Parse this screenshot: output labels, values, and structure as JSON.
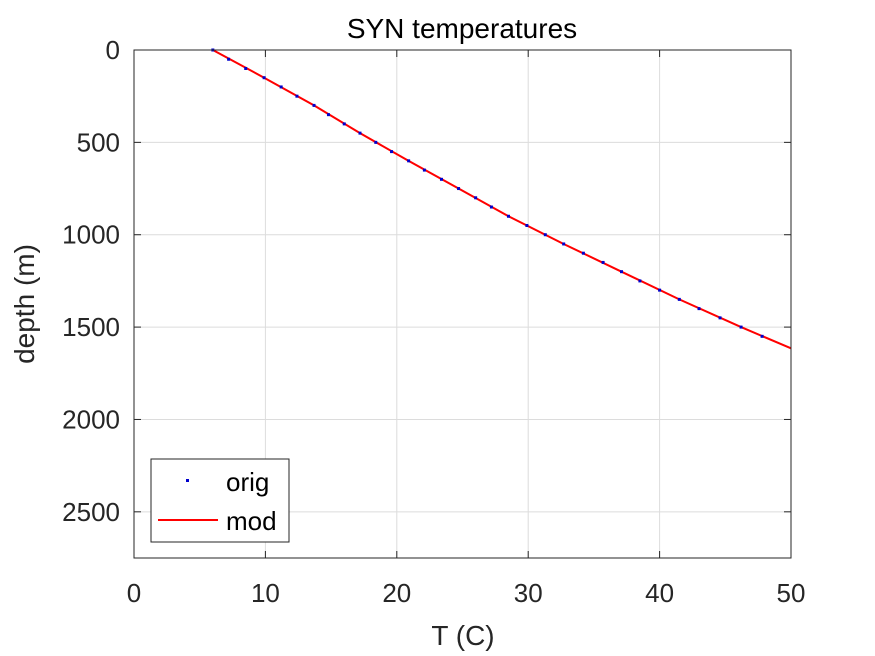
{
  "chart_data": {
    "type": "line",
    "title": "SYN temperatures",
    "xlabel": "T (C)",
    "ylabel": "depth (m)",
    "xlim": [
      0,
      50
    ],
    "ylim": [
      0,
      2750
    ],
    "y_reversed": true,
    "grid": true,
    "x_ticks": [
      0,
      10,
      20,
      30,
      40,
      50
    ],
    "y_ticks": [
      0,
      500,
      1000,
      1500,
      2000,
      2500
    ],
    "legend": {
      "placement": "bottom-left",
      "entries": [
        "orig",
        "mod"
      ]
    },
    "colors": {
      "orig": "#0000cc",
      "mod": "#ff0000"
    },
    "series": [
      {
        "name": "orig",
        "style": "points",
        "x": [
          6.0,
          7.2,
          8.5,
          9.9,
          11.2,
          12.4,
          13.7,
          14.8,
          16.0,
          17.2,
          18.4,
          19.6,
          20.9,
          22.1,
          23.4,
          24.7,
          26.0,
          27.2,
          28.5,
          29.9,
          31.3,
          32.7,
          34.2,
          35.7,
          37.1,
          38.5,
          40.0,
          41.5,
          43.0,
          44.6,
          46.2,
          47.8
        ],
        "y": [
          0,
          50,
          100,
          150,
          200,
          250,
          300,
          350,
          400,
          450,
          500,
          550,
          600,
          650,
          700,
          750,
          800,
          850,
          900,
          950,
          1000,
          1050,
          1100,
          1150,
          1200,
          1250,
          1300,
          1350,
          1400,
          1450,
          1500,
          1550
        ]
      },
      {
        "name": "mod",
        "style": "line",
        "x": [
          6.0,
          9.9,
          13.7,
          17.2,
          20.9,
          24.7,
          28.5,
          32.7,
          37.1,
          41.5,
          46.2,
          50.0
        ],
        "y": [
          0,
          150,
          300,
          450,
          600,
          750,
          900,
          1050,
          1200,
          1350,
          1500,
          1615
        ]
      }
    ]
  }
}
